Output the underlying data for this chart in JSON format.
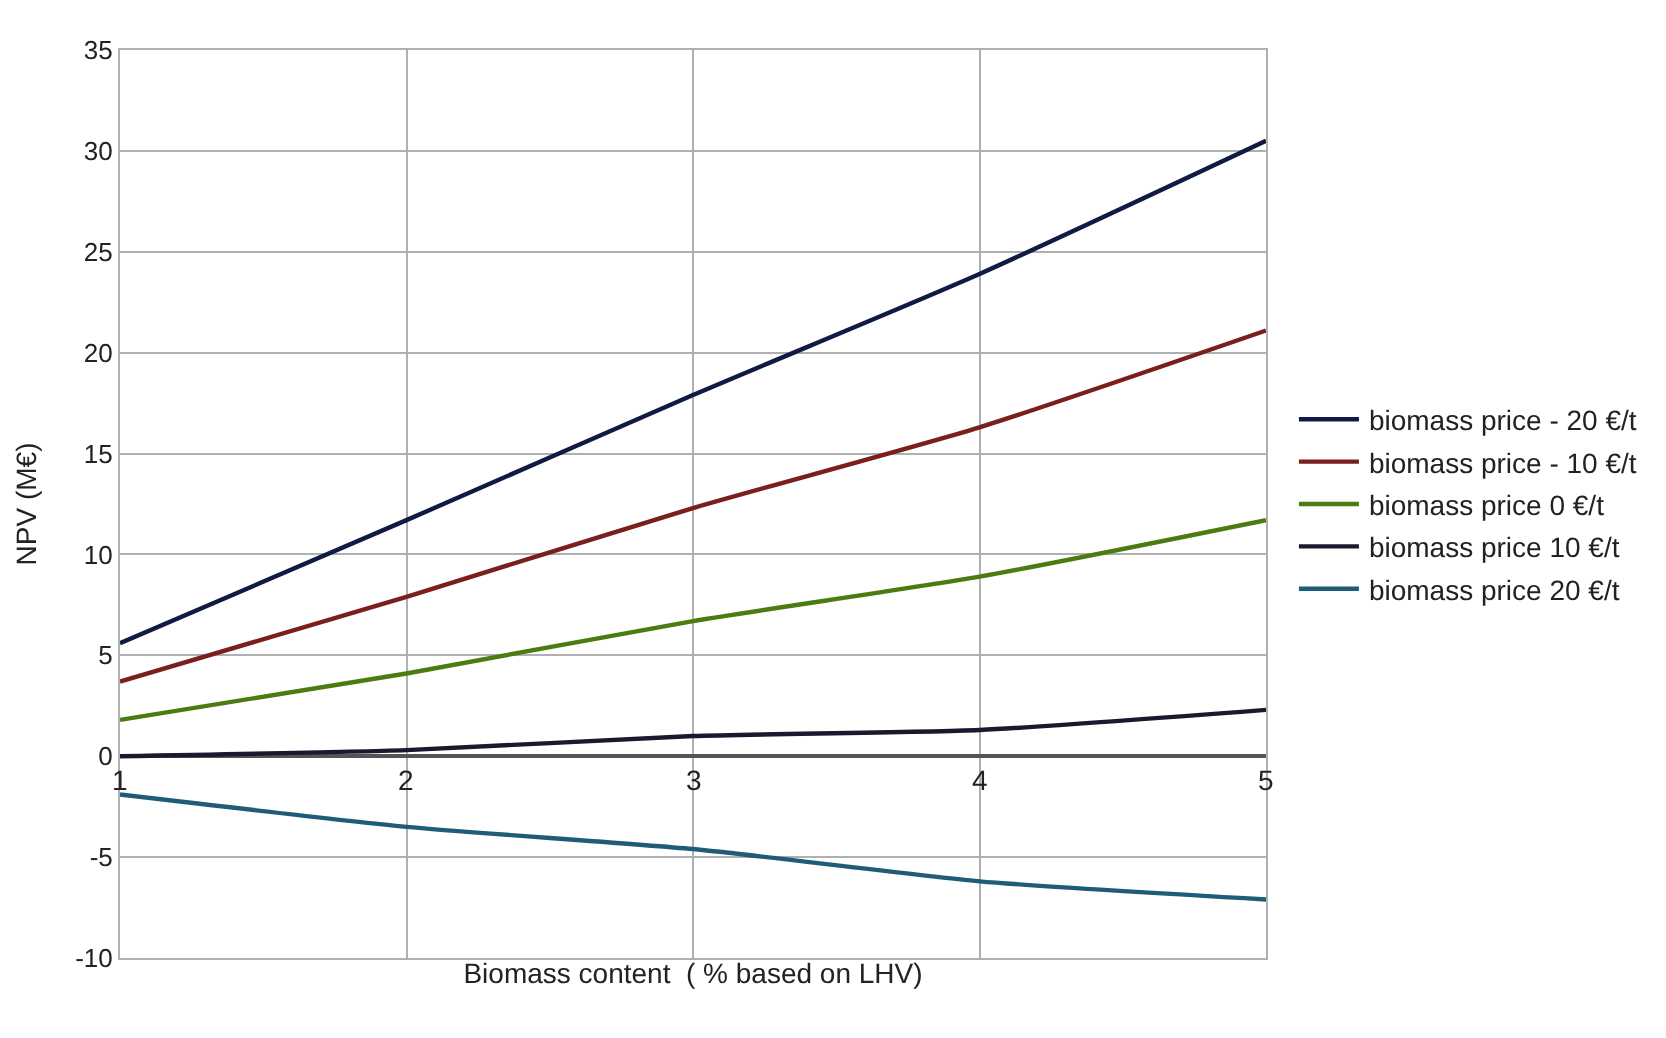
{
  "chart_data": {
    "type": "line",
    "xlabel": "Biomass content  ( % based on LHV)",
    "ylabel": "NPV (M€)",
    "x": [
      1,
      2,
      3,
      4,
      5
    ],
    "series": [
      {
        "name": "biomass price - 20 €/t",
        "color": "#0f1b45",
        "values": [
          5.6,
          11.7,
          17.9,
          23.9,
          30.5
        ]
      },
      {
        "name": "biomass price - 10 €/t",
        "color": "#7a1e1e",
        "values": [
          3.7,
          7.9,
          12.3,
          16.3,
          21.1
        ]
      },
      {
        "name": "biomass price 0 €/t",
        "color": "#4a7c12",
        "values": [
          1.8,
          4.1,
          6.7,
          8.9,
          11.7
        ]
      },
      {
        "name": "biomass price 10 €/t",
        "color": "#1c1830",
        "values": [
          0,
          0.3,
          1.0,
          1.3,
          2.3
        ]
      },
      {
        "name": "biomass price 20 €/t",
        "color": "#1f5c78",
        "values": [
          -1.9,
          -3.5,
          -4.6,
          -6.2,
          -7.1
        ]
      }
    ],
    "xlim": [
      1,
      5
    ],
    "xticks": [
      1,
      2,
      3,
      4,
      5
    ],
    "ylim": [
      -10,
      35
    ],
    "yticks": [
      -10,
      -5,
      0,
      5,
      10,
      15,
      20,
      25,
      30,
      35
    ],
    "grid": true,
    "legend": "right",
    "marker": "none",
    "line_style": "solid"
  }
}
